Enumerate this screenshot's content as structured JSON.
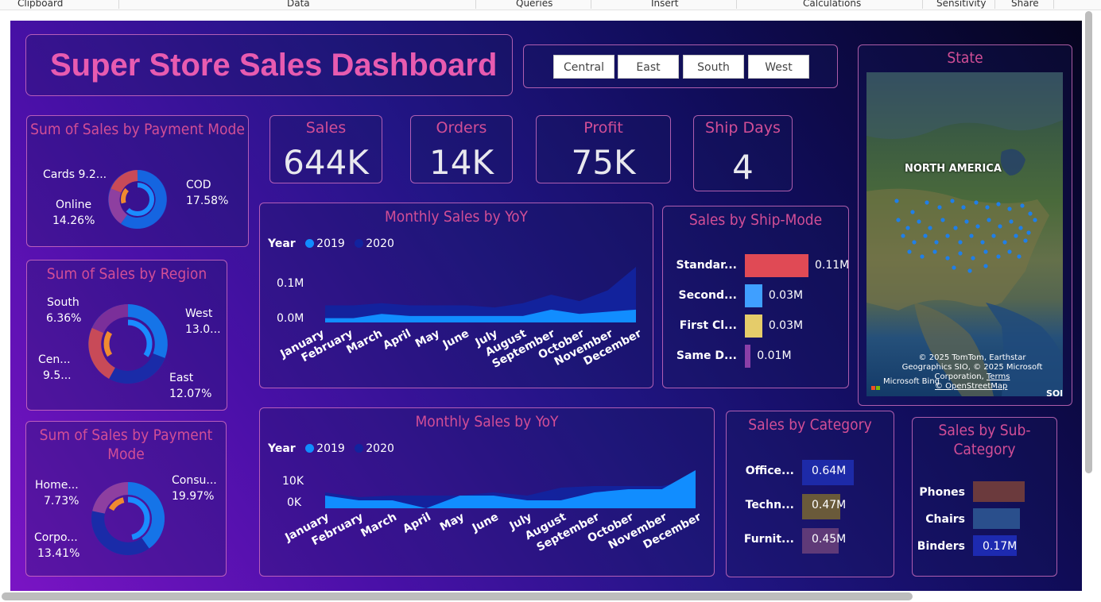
{
  "ribbon": {
    "groups": [
      "Clipboard",
      "Data",
      "Queries",
      "Insert",
      "Calculations",
      "Sensitivity",
      "Share"
    ]
  },
  "dashboard": {
    "title": "Super Store Sales Dashboard",
    "slicer": [
      "Central",
      "East",
      "South",
      "West"
    ],
    "kpis": [
      {
        "label": "Sales",
        "value": "644K"
      },
      {
        "label": "Orders",
        "value": "14K"
      },
      {
        "label": "Profit",
        "value": "75K"
      },
      {
        "label": "Ship Days",
        "value": "4"
      }
    ],
    "payment_donut": {
      "title": "Sum of Sales by Payment Mode",
      "labels": [
        {
          "name": "Cards",
          "value": "9.2..."
        },
        {
          "name": "COD",
          "value": "17.58%"
        },
        {
          "name": "Online",
          "value": "14.26%"
        }
      ]
    },
    "region_donut": {
      "title": "Sum of Sales by Region",
      "labels": [
        {
          "name": "South",
          "value": "6.36%"
        },
        {
          "name": "West",
          "value": "13.0..."
        },
        {
          "name": "Cen...",
          "value": "9.5..."
        },
        {
          "name": "East",
          "value": "12.07%"
        }
      ]
    },
    "segment_donut": {
      "title": "Sum of Sales by Payment Mode",
      "labels": [
        {
          "name": "Home...",
          "value": "7.73%"
        },
        {
          "name": "Consu...",
          "value": "19.97%"
        },
        {
          "name": "Corpo...",
          "value": "13.41%"
        }
      ]
    },
    "monthly_top": {
      "title": "Monthly Sales by YoY",
      "legend_title": "Year",
      "series_names": [
        "2019",
        "2020"
      ],
      "y_ticks": [
        "0.1M",
        "0.0M"
      ]
    },
    "monthly_bottom": {
      "title": "Monthly Sales by YoY",
      "legend_title": "Year",
      "series_names": [
        "2019",
        "2020"
      ],
      "y_ticks": [
        "10K",
        "0K"
      ]
    },
    "months": [
      "January",
      "February",
      "March",
      "April",
      "May",
      "June",
      "July",
      "August",
      "September",
      "October",
      "November",
      "December"
    ],
    "ship_mode": {
      "title": "Sales by Ship-Mode",
      "rows": [
        {
          "label": "Standar...",
          "value": "0.11M"
        },
        {
          "label": "Second...",
          "value": "0.03M"
        },
        {
          "label": "First Cl...",
          "value": "0.03M"
        },
        {
          "label": "Same D...",
          "value": "0.01M"
        }
      ]
    },
    "state_map": {
      "title": "State",
      "region_label": "NORTH AMERICA",
      "attribution": "© 2025 TomTom, Earthstar Geographics SIO, © 2025 Microsoft Corporation,",
      "terms": "Terms",
      "osm": "© OpenStreetMap",
      "bing": "Microsoft Bing",
      "corner": "SOl"
    },
    "category": {
      "title": "Sales by Category",
      "rows": [
        {
          "label": "Office...",
          "value": "0.64M"
        },
        {
          "label": "Techn...",
          "value": "0.47M"
        },
        {
          "label": "Furnit...",
          "value": "0.45M"
        }
      ]
    },
    "subcategory": {
      "title": "Sales by Sub-Category",
      "rows": [
        {
          "label": "Phones",
          "value": ""
        },
        {
          "label": "Chairs",
          "value": ""
        },
        {
          "label": "Binders",
          "value": "0.17M"
        }
      ]
    }
  },
  "colors": {
    "accent_pink": "#d24e96",
    "series_2019": "#118dff",
    "series_2020": "#12239e",
    "standard_bar": "#e04a55",
    "second_bar": "#3f9fff",
    "first_bar": "#e5cc6a",
    "same_bar": "#8a3fa8"
  },
  "chart_data": [
    {
      "type": "area",
      "title": "Monthly Sales by YoY",
      "x": [
        "January",
        "February",
        "March",
        "April",
        "May",
        "June",
        "July",
        "August",
        "September",
        "October",
        "November",
        "December"
      ],
      "series": [
        {
          "name": "2019",
          "values": [
            0.01,
            0.01,
            0.02,
            0.015,
            0.015,
            0.015,
            0.015,
            0.015,
            0.03,
            0.02,
            0.025,
            0.03
          ]
        },
        {
          "name": "2020",
          "values": [
            0.04,
            0.04,
            0.045,
            0.04,
            0.04,
            0.04,
            0.035,
            0.045,
            0.065,
            0.05,
            0.075,
            0.13
          ]
        }
      ],
      "ylabel": "",
      "xlabel": "",
      "ylim": [
        0,
        0.13
      ]
    },
    {
      "type": "area",
      "title": "Monthly Sales by YoY",
      "x": [
        "January",
        "February",
        "March",
        "April",
        "May",
        "June",
        "July",
        "August",
        "September",
        "October",
        "November",
        "December"
      ],
      "series": [
        {
          "name": "2019",
          "values": [
            3000,
            0,
            0,
            -5000,
            3000,
            3000,
            0,
            0,
            5000,
            7000,
            7000,
            19000
          ]
        },
        {
          "name": "2020",
          "values": [
            5000,
            2000,
            3000,
            3000,
            3000,
            5000,
            3000,
            8000,
            9000,
            9000,
            9000,
            13000
          ]
        }
      ],
      "ylim": [
        -5000,
        19000
      ]
    },
    {
      "type": "bar",
      "title": "Sales by Ship-Mode",
      "categories": [
        "Standar...",
        "Second...",
        "First Cl...",
        "Same D..."
      ],
      "values": [
        0.11,
        0.03,
        0.03,
        0.01
      ]
    },
    {
      "type": "bar",
      "title": "Sales by Category",
      "categories": [
        "Office...",
        "Techn...",
        "Furnit..."
      ],
      "values": [
        0.64,
        0.47,
        0.45
      ]
    },
    {
      "type": "bar",
      "title": "Sales by Sub-Category",
      "categories": [
        "Phones",
        "Chairs",
        "Binders"
      ],
      "values": [
        0.2,
        0.18,
        0.17
      ]
    },
    {
      "type": "pie",
      "title": "Sum of Sales by Payment Mode",
      "categories": [
        "COD",
        "Online",
        "Cards"
      ],
      "values": [
        17.58,
        14.26,
        9.2
      ]
    },
    {
      "type": "pie",
      "title": "Sum of Sales by Region",
      "categories": [
        "West",
        "East",
        "Central",
        "South"
      ],
      "values": [
        13.0,
        12.07,
        9.5,
        6.36
      ]
    },
    {
      "type": "pie",
      "title": "Sum of Sales by Payment Mode",
      "categories": [
        "Consumer",
        "Corporate",
        "Home Office"
      ],
      "values": [
        19.97,
        13.41,
        7.73
      ]
    }
  ]
}
